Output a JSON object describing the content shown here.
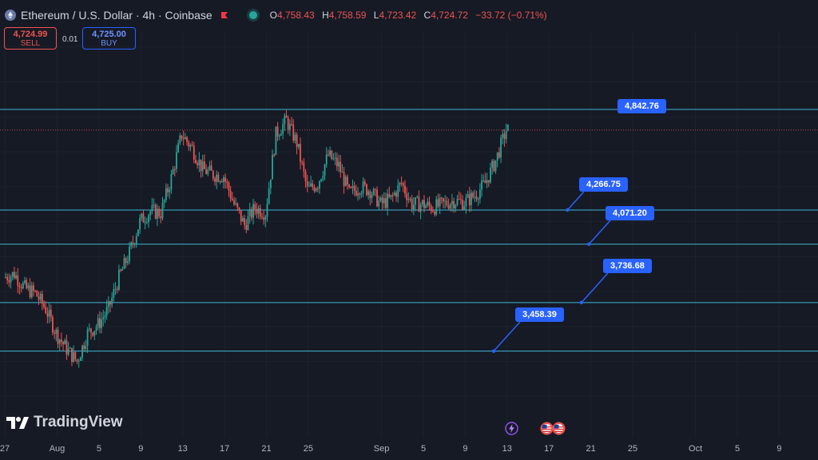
{
  "header": {
    "symbol_title": "Ethereum / U.S. Dollar · 4h · Coinbase",
    "ohlc": [
      {
        "key": "O",
        "value": "4,758.43"
      },
      {
        "key": "H",
        "value": "4,758.59"
      },
      {
        "key": "L",
        "value": "4,723.42"
      },
      {
        "key": "C",
        "value": "4,724.72"
      }
    ],
    "change": "−33.72 (−0.71%)"
  },
  "trade": {
    "sell_price": "4,724.99",
    "sell_label": "SELL",
    "spread": "0.01",
    "buy_price": "4,725.00",
    "buy_label": "BUY"
  },
  "brand": {
    "logo_text": "TradingView"
  },
  "colors": {
    "background": "#161a25",
    "up": "#26a69a",
    "down": "#ef5350",
    "level_line": "#3fb7d6",
    "callout": "#2962ff"
  },
  "icons": [
    "ethereum-icon",
    "flag-icon",
    "live-market-icon",
    "lightning-event-icon",
    "us-economic-event-icon"
  ],
  "chart_data": {
    "type": "candlestick",
    "timeframe": "4h",
    "price_range": [
      3100,
      5250
    ],
    "last_price": 4724.72,
    "levels": [
      {
        "label": "4,842.76",
        "value": 4842.76
      },
      {
        "label": "4,266.75",
        "value": 4266.75
      },
      {
        "label": "4,071.20",
        "value": 4071.2
      },
      {
        "label": "3,736.68",
        "value": 3736.68
      },
      {
        "label": "3,458.39",
        "value": 3458.39
      }
    ],
    "x_axis": {
      "labels": [
        "27",
        "Aug",
        "5",
        "9",
        "13",
        "17",
        "21",
        "25",
        "Sep",
        "5",
        "9",
        "13",
        "17",
        "21",
        "25",
        "Oct",
        "5",
        "9"
      ],
      "dates": [
        "2025-07-27",
        "2025-08-01",
        "2025-08-05",
        "2025-08-09",
        "2025-08-13",
        "2025-08-17",
        "2025-08-21",
        "2025-08-25",
        "2025-09-01",
        "2025-09-05",
        "2025-09-09",
        "2025-09-13",
        "2025-09-17",
        "2025-09-21",
        "2025-09-25",
        "2025-10-01",
        "2025-10-05",
        "2025-10-09"
      ]
    },
    "close_path": [
      [
        "2025-07-27",
        3880
      ],
      [
        "2025-07-28",
        3900
      ],
      [
        "2025-07-29",
        3820
      ],
      [
        "2025-07-30",
        3790
      ],
      [
        "2025-07-31",
        3700
      ],
      [
        "2025-08-01",
        3560
      ],
      [
        "2025-08-02",
        3470
      ],
      [
        "2025-08-03",
        3400
      ],
      [
        "2025-08-04",
        3560
      ],
      [
        "2025-08-05",
        3610
      ],
      [
        "2025-08-06",
        3700
      ],
      [
        "2025-08-07",
        3880
      ],
      [
        "2025-08-08",
        4020
      ],
      [
        "2025-08-09",
        4200
      ],
      [
        "2025-08-10",
        4260
      ],
      [
        "2025-08-11",
        4250
      ],
      [
        "2025-08-12",
        4450
      ],
      [
        "2025-08-13",
        4700
      ],
      [
        "2025-08-14",
        4620
      ],
      [
        "2025-08-15",
        4500
      ],
      [
        "2025-08-16",
        4470
      ],
      [
        "2025-08-17",
        4460
      ],
      [
        "2025-08-18",
        4300
      ],
      [
        "2025-08-19",
        4180
      ],
      [
        "2025-08-20",
        4280
      ],
      [
        "2025-08-21",
        4250
      ],
      [
        "2025-08-22",
        4700
      ],
      [
        "2025-08-23",
        4780
      ],
      [
        "2025-08-24",
        4650
      ],
      [
        "2025-08-25",
        4380
      ],
      [
        "2025-08-26",
        4420
      ],
      [
        "2025-08-27",
        4580
      ],
      [
        "2025-08-28",
        4520
      ],
      [
        "2025-08-29",
        4360
      ],
      [
        "2025-08-30",
        4400
      ],
      [
        "2025-08-31",
        4380
      ],
      [
        "2025-09-01",
        4300
      ],
      [
        "2025-09-02",
        4330
      ],
      [
        "2025-09-03",
        4420
      ],
      [
        "2025-09-04",
        4300
      ],
      [
        "2025-09-05",
        4300
      ],
      [
        "2025-09-06",
        4280
      ],
      [
        "2025-09-07",
        4300
      ],
      [
        "2025-09-08",
        4320
      ],
      [
        "2025-09-09",
        4310
      ],
      [
        "2025-09-10",
        4350
      ],
      [
        "2025-09-11",
        4420
      ],
      [
        "2025-09-12",
        4550
      ],
      [
        "2025-09-13",
        4724.72
      ]
    ]
  }
}
